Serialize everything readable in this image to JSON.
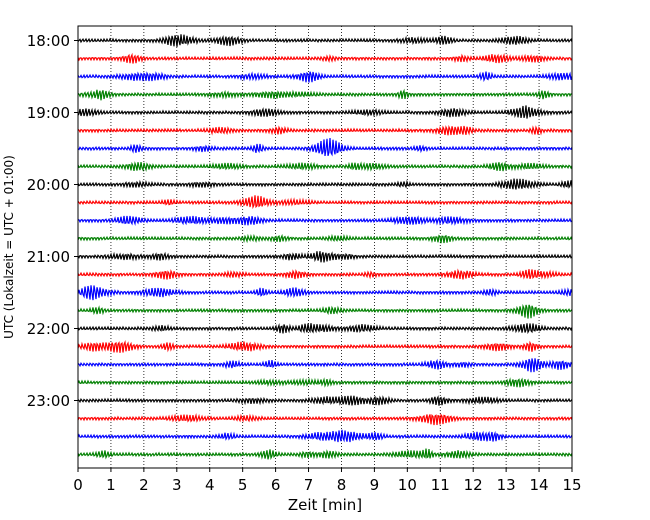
{
  "chart_data": {
    "type": "line",
    "title": "",
    "xlabel": "Zeit  [min]",
    "ylabel": "UTC (Lokalzeit = UTC + 01:00)",
    "xlim": [
      0,
      15
    ],
    "x_ticks": [
      "0",
      "1",
      "2",
      "3",
      "4",
      "5",
      "6",
      "7",
      "8",
      "9",
      "10",
      "11",
      "12",
      "13",
      "14",
      "15"
    ],
    "y_tick_labels": [
      "18:00",
      "19:00",
      "20:00",
      "21:00",
      "22:00",
      "23:00"
    ],
    "trace_start_times": [
      "18:00",
      "18:15",
      "18:30",
      "18:45",
      "19:00",
      "19:15",
      "19:30",
      "19:45",
      "20:00",
      "20:15",
      "20:30",
      "20:45",
      "21:00",
      "21:15",
      "21:30",
      "21:45",
      "22:00",
      "22:15",
      "22:30",
      "22:45",
      "23:00",
      "23:15",
      "23:30",
      "23:45"
    ],
    "trace_colors": [
      "#000000",
      "#ff0000",
      "#0000ff",
      "#008000"
    ],
    "grid": "vertical dotted lines at each minute",
    "legend": "none"
  }
}
